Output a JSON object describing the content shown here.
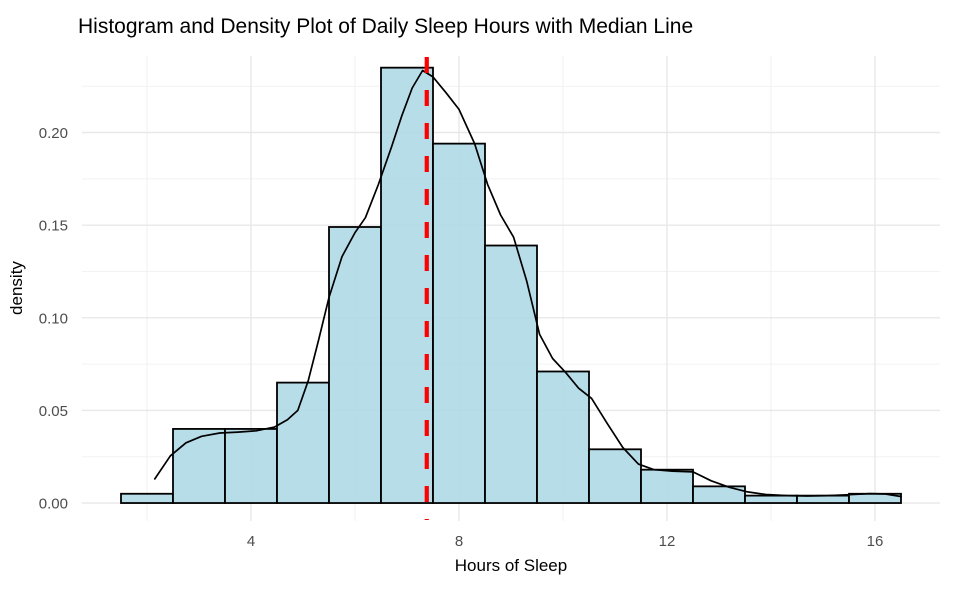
{
  "chart_data": {
    "type": "bar",
    "subtype": "histogram_with_density_overlay_and_median_vline",
    "title": "Histogram and Density Plot of Daily Sleep Hours with Median Line",
    "xlabel": "Hours of Sleep",
    "ylabel": "density",
    "xlim": [
      0.75,
      17.25
    ],
    "ylim": [
      -0.0097,
      0.2413
    ],
    "grid": true,
    "legend": "none",
    "x_ticks": [
      4,
      8,
      12,
      16
    ],
    "x_tick_labels": [
      "4",
      "8",
      "12",
      "16"
    ],
    "x_minor_ticks": [
      2,
      6,
      10,
      14
    ],
    "y_ticks": [
      0,
      0.05,
      0.1,
      0.15,
      0.2
    ],
    "y_tick_labels": [
      "0.00",
      "0.05",
      "0.10",
      "0.15",
      "0.20"
    ],
    "y_minor_ticks": [
      0.025,
      0.075,
      0.125,
      0.175,
      0.225
    ],
    "histogram": {
      "bin_width": 1,
      "bin_edges": [
        1.5,
        2.5,
        3.5,
        4.5,
        5.5,
        6.5,
        7.5,
        8.5,
        9.5,
        10.5,
        11.5,
        12.5,
        13.5,
        14.5,
        15.5,
        16.5
      ],
      "densities": [
        0.005,
        0.04,
        0.04,
        0.065,
        0.149,
        0.235,
        0.194,
        0.139,
        0.071,
        0.029,
        0.018,
        0.009,
        0.004,
        0.004,
        0.005
      ]
    },
    "density_curve": {
      "x": [
        2.15,
        2.45,
        2.75,
        3.05,
        3.4,
        3.75,
        4.1,
        4.45,
        4.7,
        4.9,
        5.1,
        5.3,
        5.5,
        5.75,
        6.0,
        6.2,
        6.45,
        6.7,
        6.9,
        7.1,
        7.3,
        7.5,
        7.75,
        8.0,
        8.3,
        8.55,
        8.8,
        9.05,
        9.3,
        9.55,
        9.8,
        10.05,
        10.3,
        10.55,
        10.85,
        11.15,
        11.45,
        11.75,
        12.1,
        12.5,
        12.85,
        13.2,
        13.55,
        13.9,
        14.3,
        14.7,
        15.1,
        15.5,
        15.9,
        16.2,
        16.5
      ],
      "y": [
        0.013,
        0.0255,
        0.0325,
        0.036,
        0.0378,
        0.0383,
        0.039,
        0.041,
        0.045,
        0.05,
        0.066,
        0.088,
        0.111,
        0.133,
        0.146,
        0.154,
        0.172,
        0.192,
        0.209,
        0.224,
        0.2335,
        0.23,
        0.2215,
        0.2125,
        0.194,
        0.172,
        0.1555,
        0.1435,
        0.12,
        0.091,
        0.078,
        0.0705,
        0.062,
        0.0565,
        0.043,
        0.03,
        0.021,
        0.018,
        0.0172,
        0.0168,
        0.012,
        0.0085,
        0.006,
        0.0046,
        0.004,
        0.0038,
        0.004,
        0.0045,
        0.0051,
        0.0049,
        0.0035
      ]
    },
    "median_line": {
      "x": 7.38,
      "style": "dashed",
      "color": "#FF0000"
    },
    "colors": {
      "bar_fill": "#ADD8E6",
      "bar_border": "#000000",
      "density_line": "#000000",
      "median_line": "#FF0000",
      "grid_major": "#E8E8E8",
      "grid_minor": "#F2F2F2",
      "axis_text": "#4D4D4D",
      "title_text": "#000000",
      "background": "#FFFFFF"
    }
  }
}
